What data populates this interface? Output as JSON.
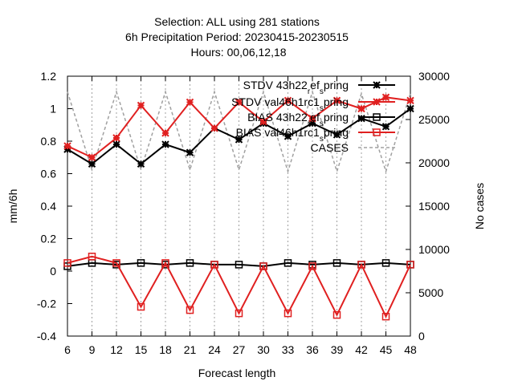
{
  "title_lines": [
    "Selection: ALL using    281 stations",
    "6h Precipitation   Period: 20230415-20230515",
    "Hours:  00,06,12,18"
  ],
  "chart_data": {
    "type": "line",
    "xlabel": "Forecast length",
    "ylabel": "mm/6h",
    "y2label": "No cases",
    "x": [
      6,
      9,
      12,
      15,
      18,
      21,
      24,
      27,
      30,
      33,
      36,
      39,
      42,
      45,
      48
    ],
    "xlim": [
      6,
      48
    ],
    "ylim": [
      -0.4,
      1.2
    ],
    "y2lim": [
      0,
      30000
    ],
    "yticks": [
      "-0.4",
      "-0.2",
      "0",
      "0.2",
      "0.4",
      "0.6",
      "0.8",
      "1",
      "1.2"
    ],
    "y2ticks": [
      "0",
      "5000",
      "10000",
      "15000",
      "20000",
      "25000",
      "30000"
    ],
    "grid": "x",
    "legend_position": "top-right",
    "series": [
      {
        "name": "STDV 43h22_ref_spring",
        "legend_text": [
          "STDV 43h22",
          "_r",
          "ef",
          "_s",
          "pring"
        ],
        "axis": "y1",
        "color": "#000000",
        "dash": "",
        "marker": "star",
        "values": [
          0.75,
          0.66,
          0.78,
          0.66,
          0.78,
          0.73,
          0.88,
          0.81,
          0.91,
          0.83,
          0.91,
          0.84,
          0.94,
          0.89,
          1.0
        ]
      },
      {
        "name": "STDV val46h1rc1_spring",
        "legend_text": [
          "STDV val46h1rc1",
          "_s",
          "pring"
        ],
        "axis": "y1",
        "color": "#e02020",
        "dash": "",
        "marker": "star",
        "values": [
          0.77,
          0.7,
          0.82,
          1.02,
          0.85,
          1.04,
          0.88,
          1.04,
          0.92,
          1.05,
          0.94,
          1.05,
          1.0,
          1.07,
          1.05
        ]
      },
      {
        "name": "BIAS 43h22_ref_spring",
        "legend_text": [
          "BIAS 43h22",
          "_r",
          "ef",
          "_s",
          "pring"
        ],
        "axis": "y1",
        "color": "#000000",
        "dash": "",
        "marker": "square",
        "values": [
          0.03,
          0.05,
          0.04,
          0.05,
          0.04,
          0.05,
          0.04,
          0.04,
          0.03,
          0.05,
          0.04,
          0.05,
          0.04,
          0.05,
          0.04
        ]
      },
      {
        "name": "BIAS val46h1rc1_spring",
        "legend_text": [
          "BIAS val46h1rc1",
          "_s",
          "pring"
        ],
        "axis": "y1",
        "color": "#e02020",
        "dash": "",
        "marker": "square",
        "values": [
          0.05,
          0.09,
          0.05,
          -0.22,
          0.05,
          -0.24,
          0.04,
          -0.26,
          0.03,
          -0.26,
          0.03,
          -0.27,
          0.04,
          -0.28,
          0.04
        ]
      },
      {
        "name": "CASES",
        "legend_text": [
          "CASES"
        ],
        "axis": "y2",
        "color": "#a0a0a0",
        "dash": "4,3",
        "marker": "none",
        "values": [
          28200,
          19200,
          28200,
          19200,
          28200,
          19200,
          28200,
          19200,
          28200,
          19000,
          28200,
          19000,
          28000,
          19000,
          28000
        ]
      }
    ]
  }
}
